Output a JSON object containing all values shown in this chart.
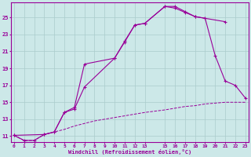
{
  "xlabel": "Windchill (Refroidissement éolien,°C)",
  "bg_color": "#cce8e8",
  "line_color": "#990099",
  "grid_color": "#aacccc",
  "xlim": [
    -0.3,
    23.3
  ],
  "ylim": [
    10.3,
    26.8
  ],
  "xticks": [
    0,
    1,
    2,
    3,
    4,
    5,
    6,
    7,
    8,
    9,
    10,
    11,
    12,
    13,
    15,
    16,
    17,
    18,
    19,
    20,
    21,
    22,
    23
  ],
  "yticks": [
    11,
    13,
    15,
    17,
    19,
    21,
    23,
    25
  ],
  "curve1_x": [
    0,
    1,
    2,
    3,
    4,
    5,
    6,
    7,
    10,
    11,
    12,
    13,
    15,
    16,
    17,
    18,
    21
  ],
  "curve1_y": [
    11.1,
    10.5,
    10.5,
    11.2,
    11.5,
    13.8,
    14.2,
    16.8,
    20.2,
    22.2,
    24.1,
    24.3,
    26.3,
    26.3,
    25.7,
    25.1,
    24.5
  ],
  "curve2_x": [
    0,
    3,
    4,
    5,
    6,
    7,
    10,
    11,
    12,
    13,
    15,
    16,
    17,
    18,
    19,
    20,
    21,
    22,
    23
  ],
  "curve2_y": [
    11.1,
    11.2,
    11.5,
    13.8,
    14.4,
    19.5,
    20.2,
    22.1,
    24.1,
    24.3,
    26.3,
    26.1,
    25.6,
    25.1,
    24.9,
    20.5,
    17.5,
    17.0,
    15.5
  ],
  "curve3_x": [
    0,
    1,
    2,
    3,
    4,
    5,
    6,
    7,
    8,
    9,
    10,
    11,
    12,
    13,
    15,
    16,
    17,
    18,
    19,
    20,
    21,
    22,
    23
  ],
  "curve3_y": [
    11.1,
    10.5,
    10.5,
    11.2,
    11.5,
    11.8,
    12.2,
    12.5,
    12.8,
    13.0,
    13.2,
    13.4,
    13.6,
    13.8,
    14.1,
    14.3,
    14.5,
    14.6,
    14.8,
    14.9,
    15.0,
    15.0,
    15.0
  ]
}
